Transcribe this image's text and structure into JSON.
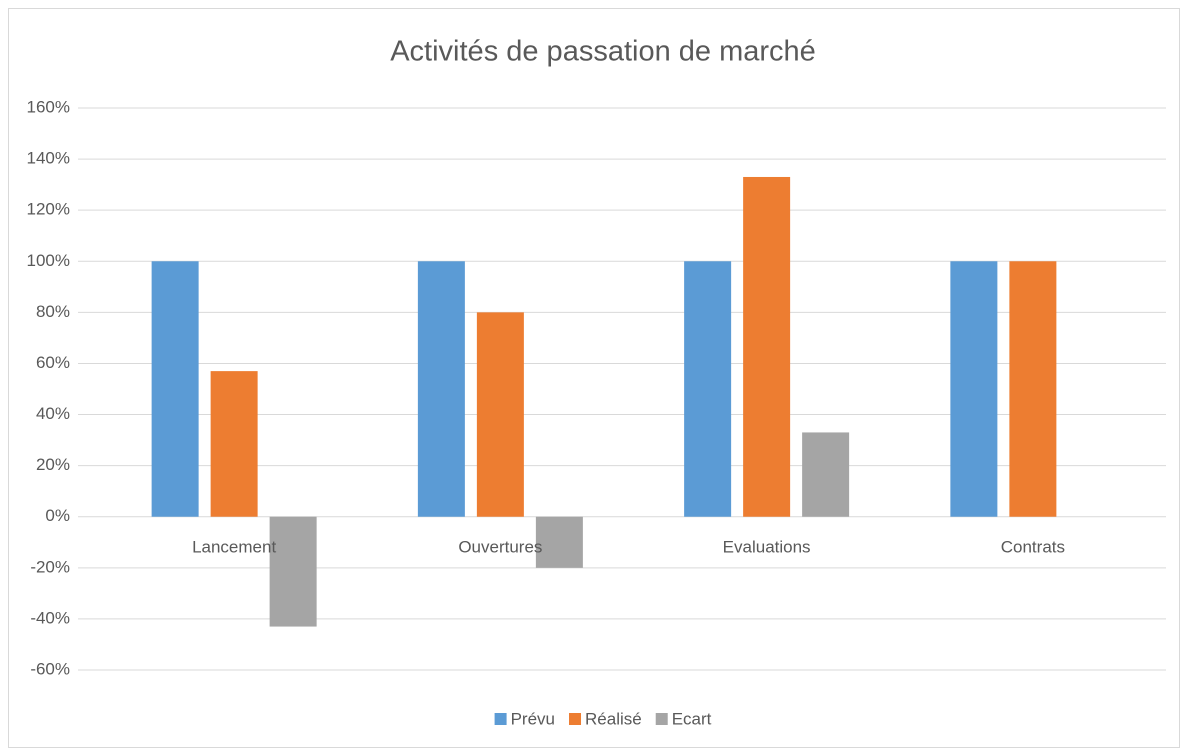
{
  "chart_data": {
    "type": "bar",
    "title": "Activités de passation de marché",
    "categories": [
      "Lancement",
      "Ouvertures",
      "Evaluations",
      "Contrats"
    ],
    "series": [
      {
        "name": "Prévu",
        "color": "#5b9bd5",
        "values": [
          100,
          100,
          100,
          100
        ]
      },
      {
        "name": "Réalisé",
        "color": "#ed7d31",
        "values": [
          57,
          80,
          133,
          100
        ]
      },
      {
        "name": "Ecart",
        "color": "#a5a5a5",
        "values": [
          -43,
          -20,
          33,
          0
        ]
      }
    ],
    "ylim": [
      -60,
      160
    ],
    "yticks": [
      {
        "value": -60,
        "label": "-60%"
      },
      {
        "value": -40,
        "label": "-40%"
      },
      {
        "value": -20,
        "label": "-20%"
      },
      {
        "value": 0,
        "label": "0%"
      },
      {
        "value": 20,
        "label": "20%"
      },
      {
        "value": 40,
        "label": "40%"
      },
      {
        "value": 60,
        "label": "60%"
      },
      {
        "value": 80,
        "label": "80%"
      },
      {
        "value": 100,
        "label": "100%"
      },
      {
        "value": 120,
        "label": "120%"
      },
      {
        "value": 140,
        "label": "140%"
      },
      {
        "value": 160,
        "label": "160%"
      }
    ],
    "grid": true,
    "legend": "bottom"
  }
}
